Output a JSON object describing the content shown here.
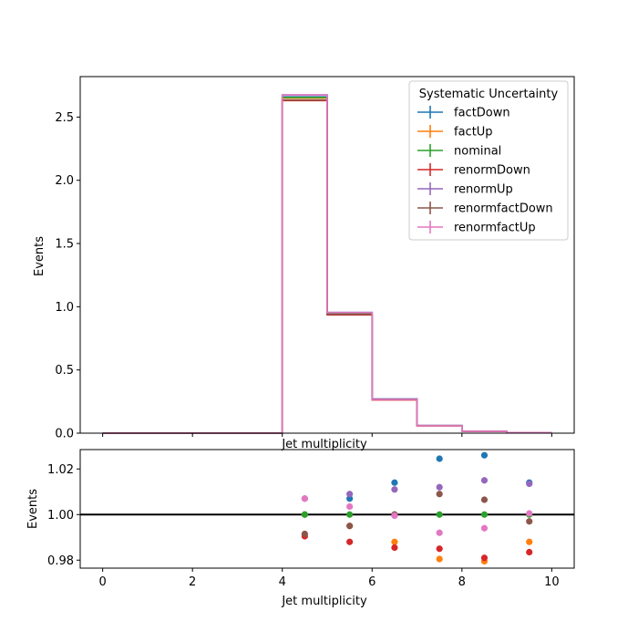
{
  "chart_data": [
    {
      "type": "line",
      "style": "step-histogram",
      "xlabel": "Jet multiplicity",
      "ylabel": "Events",
      "xlim": [
        -0.5,
        10.5
      ],
      "ylim": [
        0,
        2.82
      ],
      "x_ticks": [
        0,
        2,
        4,
        6,
        8,
        10
      ],
      "x_tick_labels_shown": false,
      "y_ticks": [
        "0.0",
        "0.5",
        "1.0",
        "1.5",
        "2.0",
        "2.5"
      ],
      "bin_edges": [
        0,
        1,
        2,
        3,
        4,
        5,
        6,
        7,
        8,
        9,
        10
      ],
      "legend": {
        "title": "Systematic Uncertainty",
        "placement": "top-right"
      },
      "series": [
        {
          "name": "factDown",
          "color": "#1f77b4",
          "values": [
            0,
            0,
            0,
            0,
            2.66,
            0.95,
            0.27,
            0.06,
            0.015,
            0.005
          ]
        },
        {
          "name": "factUp",
          "color": "#ff7f0e",
          "values": [
            0,
            0,
            0,
            0,
            2.65,
            0.94,
            0.265,
            0.058,
            0.014,
            0.005
          ]
        },
        {
          "name": "nominal",
          "color": "#2ca02c",
          "values": [
            0,
            0,
            0,
            0,
            2.655,
            0.945,
            0.267,
            0.059,
            0.0145,
            0.005
          ]
        },
        {
          "name": "renormDown",
          "color": "#d62728",
          "values": [
            0,
            0,
            0,
            0,
            2.63,
            0.935,
            0.263,
            0.058,
            0.014,
            0.005
          ]
        },
        {
          "name": "renormUp",
          "color": "#9467bd",
          "values": [
            0,
            0,
            0,
            0,
            2.675,
            0.955,
            0.27,
            0.06,
            0.015,
            0.005
          ]
        },
        {
          "name": "renormfactDown",
          "color": "#8c564b",
          "values": [
            0,
            0,
            0,
            0,
            2.635,
            0.94,
            0.267,
            0.06,
            0.0147,
            0.005
          ]
        },
        {
          "name": "renormfactUp",
          "color": "#e377c2",
          "values": [
            0,
            0,
            0,
            0,
            2.675,
            0.953,
            0.266,
            0.058,
            0.0143,
            0.005
          ]
        }
      ]
    },
    {
      "type": "scatter",
      "xlabel": "Jet multiplicity",
      "ylabel": "Events",
      "xlim": [
        -0.5,
        10.5
      ],
      "ylim": [
        0.9765,
        1.0285
      ],
      "x_ticks": [
        "0",
        "2",
        "4",
        "6",
        "8",
        "10"
      ],
      "y_ticks": [
        "0.98",
        "1.00",
        "1.02"
      ],
      "reference_line": 1.0,
      "x": [
        4.5,
        5.5,
        6.5,
        7.5,
        8.5,
        9.5
      ],
      "series": [
        {
          "name": "factDown",
          "color": "#1f77b4",
          "values": [
            1.0,
            1.007,
            1.014,
            1.0245,
            1.026,
            1.014
          ]
        },
        {
          "name": "factUp",
          "color": "#ff7f0e",
          "values": [
            1.0,
            0.995,
            0.988,
            0.9805,
            0.9795,
            0.988
          ]
        },
        {
          "name": "nominal",
          "color": "#2ca02c",
          "values": [
            1.0,
            1.0,
            1.0,
            1.0,
            1.0,
            1.0
          ]
        },
        {
          "name": "renormDown",
          "color": "#d62728",
          "values": [
            0.9905,
            0.988,
            0.9855,
            0.985,
            0.981,
            0.9835
          ]
        },
        {
          "name": "renormUp",
          "color": "#9467bd",
          "values": [
            1.007,
            1.009,
            1.011,
            1.012,
            1.015,
            1.0135
          ]
        },
        {
          "name": "renormfactDown",
          "color": "#8c564b",
          "values": [
            0.9915,
            0.995,
            1.0,
            1.009,
            1.0065,
            0.997
          ]
        },
        {
          "name": "renormfactUp",
          "color": "#e377c2",
          "values": [
            1.007,
            1.0035,
            0.9995,
            0.992,
            0.994,
            1.0005
          ]
        }
      ]
    }
  ]
}
